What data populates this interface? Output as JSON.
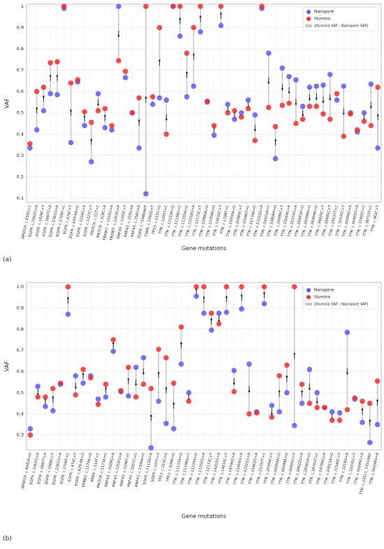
{
  "chart_data": [
    {
      "type": "dot",
      "label": "(a)",
      "x_label": "Gene mutations",
      "y_label": "VAF",
      "legend_position": "upper right",
      "grid": true,
      "difference_legend": "|Illumina VAF - Nanopore VAF|",
      "difference_color": "#c8c8c8",
      "ylim": [
        0.08,
        1.01
      ],
      "yticks": [
        0.1,
        0.2,
        0.3,
        0.4,
        0.5,
        0.6,
        0.7,
        0.8,
        0.9,
        1
      ],
      "categories": [
        "ARID1A: c.659G>C",
        "EGFR: c.1562G>A",
        "EGFR: c.1828C>T",
        "EGFR: c.1887T>A",
        "EGFR: c.2361G>A",
        "EGFR: c.2709T>C",
        "EGFR: c.474C>T",
        "EGFR: c.629-4A>G",
        "EGFR: c.1234G>A",
        "EGFR: c.1227C>T",
        "PIK3CA: c.51T>C",
        "PIK3CA: c.318C>A",
        "FBXW7: c.1025G>A",
        "FBXW7: c.1203G>A",
        "RNF43: c.1293C>T",
        "RNF43: c.355G>A",
        "RNF43: c.756G>A",
        "SOX9: c.*1980delT",
        "CSKR: c.1092G>T",
        "TP53: c.215C>G",
        "TTN: c.1091T>C",
        "TTN: c.11133A>G",
        "TTN: c.11198G>C",
        "TTN: c.11335A>G",
        "TTN: c.11252G>A",
        "TTN: c.12173C>T",
        "TTN: c.12990A>G",
        "TTN: c.13308A>G",
        "TTN: c.14610C>T",
        "TTN: c.1788T>C",
        "TTN: c.15930A>G",
        "TTN: c.20960C>T",
        "TTN: c.22086T>C",
        "TTN: c.22734A>G",
        "TTN: c.23222G>A",
        "TTN: c.24433A>C",
        "TTN: c.24808A>G",
        "TTN: c.24990C>T",
        "TTN: c.25064C>A",
        "TTN: c.25274G>A",
        "TTN: c.26093A>G",
        "TTN: c.26098A>G",
        "TTN: c.26404A>G",
        "TTN: c.26605C>T",
        "TTN: c.26681C>T",
        "TTN: c.29157T>C",
        "TTN: c.32035C>T",
        "TTN: c.35099G>A",
        "TTN: c.36905G>A",
        "TTN: c.37902T>C",
        "TTN: c.38753T>C",
        "TTN: c.962C>T"
      ],
      "series": [
        {
          "name": "Nanopore",
          "color": "#5a5af2",
          "values": [
            0.335,
            0.42,
            0.51,
            0.59,
            0.585,
            0.99,
            0.36,
            0.645,
            0.44,
            0.27,
            0.59,
            0.43,
            0.42,
            1.0,
            0.665,
            0.5,
            0.335,
            0.12,
            0.54,
            0.57,
            0.56,
            1.0,
            0.86,
            0.575,
            0.625,
            0.88,
            0.55,
            0.395,
            0.91,
            0.54,
            0.47,
            0.5,
            0.56,
            0.49,
            0.99,
            0.78,
            0.285,
            0.71,
            0.67,
            0.655,
            0.53,
            0.62,
            0.625,
            0.63,
            0.68,
            0.56,
            0.625,
            0.5,
            0.41,
            0.5,
            0.635,
            0.335
          ]
        },
        {
          "name": "Illumina",
          "color": "#f02e2e",
          "values": [
            0.355,
            0.6,
            0.62,
            0.735,
            0.74,
            1.0,
            0.64,
            0.655,
            0.505,
            0.455,
            0.51,
            0.52,
            0.44,
            0.745,
            0.695,
            0.5,
            0.57,
            1.0,
            0.575,
            0.9,
            0.4,
            1.0,
            1.0,
            0.78,
            0.9,
            1.0,
            0.555,
            0.44,
            1.0,
            0.5,
            0.51,
            0.48,
            0.52,
            0.37,
            1.0,
            0.525,
            0.435,
            0.535,
            0.545,
            0.45,
            0.47,
            0.53,
            0.53,
            0.495,
            0.47,
            0.59,
            0.39,
            0.495,
            0.42,
            0.46,
            0.44,
            0.62
          ]
        }
      ]
    },
    {
      "type": "dot",
      "label": "(b)",
      "x_label": "Gene mutations",
      "y_label": "VAF",
      "legend_position": "upper right",
      "grid": true,
      "difference_legend": "|Illumina VAF - Nanopore VAF|",
      "difference_color": "#c8c8c8",
      "ylim": [
        0.23,
        1.02
      ],
      "yticks": [
        0.3,
        0.4,
        0.5,
        0.6,
        0.7,
        0.8,
        0.9,
        {
          "value": 1,
          "label": "1.0"
        }
      ],
      "categories": [
        "ARID1A: c.4941A>G",
        "EGFR: c.1562G>A",
        "EGFR: c.1887T>A",
        "EGFR: c.1966C>T",
        "EGFR: c.2361G>A",
        "EGFR: c.2709T>C",
        "EGFR: c.474C>T",
        "EGFR: c.629-4A>G",
        "ERBB2: c.1174A>G",
        "KRAS: c.519T>C",
        "PIK3CA: c.1173A>G",
        "RNF43: c.1028G>A",
        "RNF43: c.1252G>A",
        "RNF43: c.1296T>C",
        "RNF43: c.2057C>G",
        "RNF43: c.2306A>G",
        "SOX9: c.1113G>A",
        "SOX9: c.507C>T",
        "TP53: c.215C>G",
        "TP53: c.639A>G",
        "TTN: c.11133A>G",
        "TTN: c.11198G>C",
        "TTN: c.11335A>G",
        "TTN: c.11252G>A",
        "TTN: c.12173C>T",
        "TTN: c.14252G>A",
        "TTN: c.14610C>T",
        "TTN: c.14746G>A",
        "TTN: c.15416G>A",
        "TTN: c.22222G>A",
        "TTN: c.25462G>A",
        "TTN: c.25707T>C",
        "TTN: c.25994C>T",
        "TTN: c.26093A>G",
        "TTN: c.26098A>G",
        "TTN: c.26605C>T",
        "TTN: c.26622G>A",
        "TTN: c.26981A>G",
        "TTN: c.29763T>C",
        "TTN: c.29799G>A",
        "TTN: c.29913A>G",
        "TTN: c.31580C>T",
        "TTN: c.3218G>A",
        "TTN: c.32035C>T",
        "TTN: c.35099G>A",
        "TTN: c.33511_33516del",
        "TTN: c.36058G>A"
      ],
      "series": [
        {
          "name": "Nanopore",
          "color": "#5a5af2",
          "values": [
            0.33,
            0.53,
            0.435,
            0.415,
            0.54,
            0.87,
            0.58,
            0.545,
            0.58,
            0.47,
            0.48,
            0.695,
            0.505,
            0.485,
            0.62,
            0.665,
            0.24,
            0.46,
            0.355,
            0.33,
            0.635,
            0.5,
            0.955,
            0.875,
            0.795,
            0.875,
            0.88,
            0.605,
            0.895,
            0.635,
            0.41,
            0.92,
            0.44,
            0.41,
            0.5,
            0.345,
            0.45,
            0.61,
            0.5,
            0.43,
            0.41,
            0.405,
            0.785,
            0.47,
            0.36,
            0.265,
            0.35
          ]
        },
        {
          "name": "Illumina",
          "color": "#f02e2e",
          "values": [
            0.3,
            0.48,
            0.48,
            0.52,
            0.545,
            1.0,
            0.49,
            0.61,
            0.57,
            0.445,
            0.54,
            0.75,
            0.51,
            0.62,
            0.48,
            0.54,
            0.52,
            0.705,
            0.665,
            0.545,
            0.81,
            0.46,
            1.0,
            1.0,
            0.875,
            0.825,
            1.0,
            0.505,
            1.0,
            0.4,
            0.405,
            1.0,
            0.385,
            0.58,
            0.63,
            1.0,
            0.54,
            0.45,
            0.43,
            0.43,
            0.37,
            0.37,
            0.42,
            0.475,
            0.46,
            0.45,
            0.555
          ]
        }
      ]
    }
  ]
}
